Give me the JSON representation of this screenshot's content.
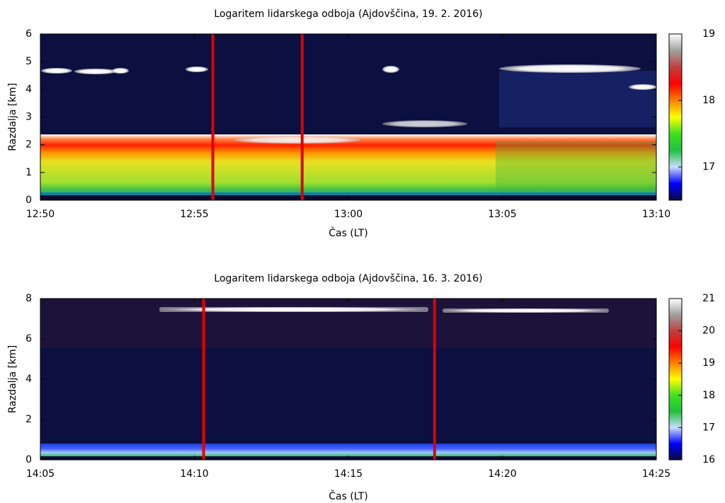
{
  "chart_data": [
    {
      "type": "heatmap",
      "title": "Logaritem lidarskega odboja (Ajdovščina, 19. 2. 2016)",
      "xlabel": "Čas (LT)",
      "ylabel": "Razdalja [km]",
      "xlim": [
        770,
        790
      ],
      "xticks": [
        {
          "value": 770,
          "label": "12:50"
        },
        {
          "value": 775,
          "label": "12:55"
        },
        {
          "value": 780,
          "label": "13:00"
        },
        {
          "value": 785,
          "label": "13:05"
        },
        {
          "value": 790,
          "label": "13:10"
        }
      ],
      "ylim": [
        0,
        6
      ],
      "yticks": [
        0,
        1,
        2,
        3,
        4,
        5,
        6
      ],
      "clim": [
        16.5,
        19
      ],
      "cticks": [
        17,
        18,
        19
      ],
      "colormap": [
        "#0a0a40",
        "#0000ff",
        "#c8dcff",
        "#20c040",
        "#40e020",
        "#ffff00",
        "#ff8000",
        "#ff0000",
        "#c04040",
        "#a0a0a0",
        "#ffffff"
      ],
      "markers": [
        {
          "x": 775.6,
          "color": "#e00000"
        },
        {
          "x": 778.5,
          "color": "#e00000"
        }
      ]
    },
    {
      "type": "heatmap",
      "title": "Logaritem lidarskega odboja (Ajdovščina, 16. 3. 2016)",
      "xlabel": "Čas (LT)",
      "ylabel": "Razdalja [km]",
      "xlim": [
        845,
        865
      ],
      "xticks": [
        {
          "value": 845,
          "label": "14:05"
        },
        {
          "value": 850,
          "label": "14:10"
        },
        {
          "value": 855,
          "label": "14:15"
        },
        {
          "value": 860,
          "label": "14:20"
        },
        {
          "value": 865,
          "label": "14:25"
        }
      ],
      "ylim": [
        0,
        8
      ],
      "yticks": [
        0,
        2,
        4,
        6,
        8
      ],
      "clim": [
        16,
        21
      ],
      "cticks": [
        16,
        17,
        18,
        19,
        20,
        21
      ],
      "colormap": [
        "#0a0a40",
        "#0000ff",
        "#c8dcff",
        "#20c040",
        "#40e020",
        "#ffff00",
        "#ff8000",
        "#ff0000",
        "#c04040",
        "#a0a0a0",
        "#ffffff"
      ],
      "markers": [
        {
          "x": 850.3,
          "color": "#e00000"
        },
        {
          "x": 857.8,
          "color": "#e00000"
        }
      ]
    }
  ]
}
